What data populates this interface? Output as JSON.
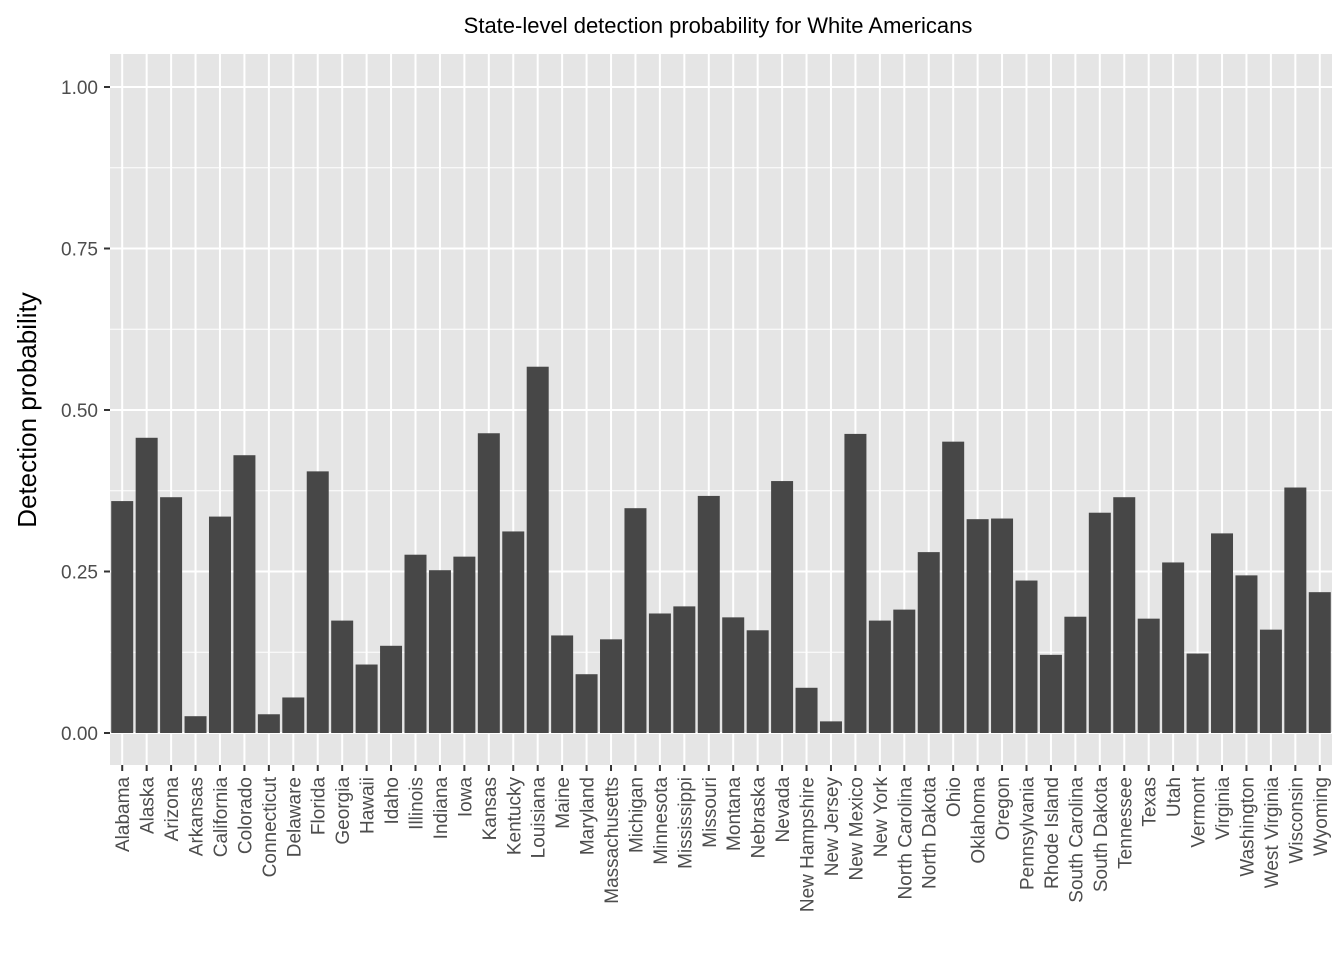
{
  "chart_data": {
    "type": "bar",
    "title": "State-level detection probability for White Americans",
    "xlabel": "",
    "ylabel": "Detection probability",
    "ylim": [
      -0.05,
      1.05
    ],
    "yticks": [
      0.0,
      0.25,
      0.5,
      0.75,
      1.0
    ],
    "ytick_labels": [
      "0.00",
      "0.25",
      "0.50",
      "0.75",
      "1.00"
    ],
    "grid": true,
    "bar_color": "#474747",
    "panel_color": "#e5e5e5",
    "grid_color": "#ffffff",
    "categories": [
      "Alabama",
      "Alaska",
      "Arizona",
      "Arkansas",
      "California",
      "Colorado",
      "Connecticut",
      "Delaware",
      "Florida",
      "Georgia",
      "Hawaii",
      "Idaho",
      "Illinois",
      "Indiana",
      "Iowa",
      "Kansas",
      "Kentucky",
      "Louisiana",
      "Maine",
      "Maryland",
      "Massachusetts",
      "Michigan",
      "Minnesota",
      "Mississippi",
      "Missouri",
      "Montana",
      "Nebraska",
      "Nevada",
      "New Hampshire",
      "New Jersey",
      "New Mexico",
      "New York",
      "North Carolina",
      "North Dakota",
      "Ohio",
      "Oklahoma",
      "Oregon",
      "Pennsylvania",
      "Rhode Island",
      "South Carolina",
      "South Dakota",
      "Tennessee",
      "Texas",
      "Utah",
      "Vermont",
      "Virginia",
      "Washington",
      "West Virginia",
      "Wisconsin",
      "Wyoming"
    ],
    "values": [
      0.359,
      0.457,
      0.365,
      0.026,
      0.335,
      0.43,
      0.029,
      0.055,
      0.405,
      0.174,
      0.106,
      0.135,
      0.276,
      0.252,
      0.273,
      0.464,
      0.312,
      0.567,
      0.151,
      0.091,
      0.145,
      0.348,
      0.185,
      0.196,
      0.367,
      0.179,
      0.159,
      0.39,
      0.07,
      0.018,
      0.463,
      0.174,
      0.191,
      0.28,
      0.451,
      0.331,
      0.332,
      0.236,
      0.121,
      0.18,
      0.341,
      0.365,
      0.177,
      0.264,
      0.123,
      0.309,
      0.244,
      0.16,
      0.38,
      0.218
    ]
  }
}
